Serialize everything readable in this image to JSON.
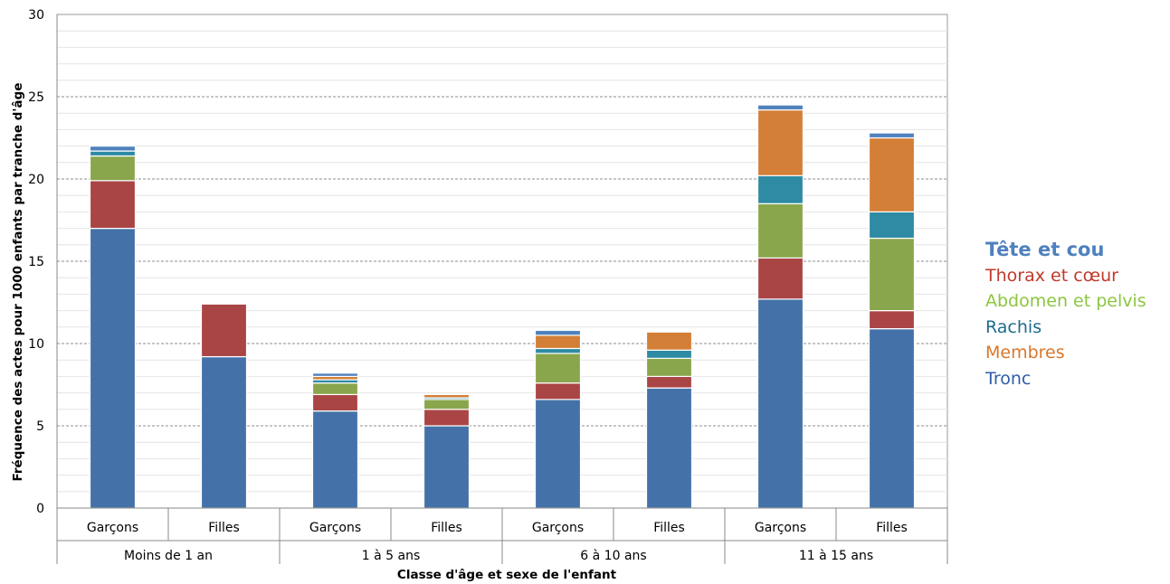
{
  "chart_data": {
    "type": "bar",
    "stacked": true,
    "ylabel": "Fréquence des actes pour 1000 enfants par tranche d'âge",
    "xlabel": "Classe d'âge et sexe de l'enfant",
    "ylim": [
      0,
      30
    ],
    "yticks": [
      "0",
      "5",
      "10",
      "15",
      "20",
      "25",
      "30"
    ],
    "grid": true,
    "legend_position": "right",
    "groups": [
      {
        "label": "Moins de 1 an",
        "categories": [
          "Garçons",
          "Filles"
        ]
      },
      {
        "label": "1 à 5 ans",
        "categories": [
          "Garçons",
          "Filles"
        ]
      },
      {
        "label": "6 à 10 ans",
        "categories": [
          "Garçons",
          "Filles"
        ]
      },
      {
        "label": "11 à 15 ans",
        "categories": [
          "Garçons",
          "Filles"
        ]
      }
    ],
    "categories": [
      "Garçons",
      "Filles",
      "Garçons",
      "Filles",
      "Garçons",
      "Filles",
      "Garçons",
      "Filles"
    ],
    "series": [
      {
        "name": "Tronc",
        "color": "#4472a8",
        "values": [
          17.0,
          9.2,
          5.9,
          5.0,
          6.6,
          7.3,
          12.7,
          10.9
        ]
      },
      {
        "name": "Thorax et cœur",
        "color": "#aa4545",
        "values": [
          2.9,
          3.2,
          1.0,
          1.0,
          1.0,
          0.7,
          2.5,
          1.1
        ]
      },
      {
        "name": "Abdomen et pelvis",
        "color": "#8aa64d",
        "values": [
          1.5,
          0,
          0.7,
          0.6,
          1.8,
          1.1,
          3.3,
          4.4
        ]
      },
      {
        "name": "Rachis",
        "color": "#2f8aa3",
        "values": [
          0.3,
          0,
          0.2,
          0.1,
          0.3,
          0.5,
          1.7,
          1.6
        ]
      },
      {
        "name": "Membres",
        "color": "#d37f38",
        "values": [
          0,
          0,
          0.2,
          0.2,
          0.8,
          1.1,
          4.0,
          4.5
        ]
      },
      {
        "name": "Tête et cou",
        "color": "#4f81bd",
        "values": [
          0.3,
          0,
          0.2,
          0.0,
          0.3,
          0,
          0.3,
          0.3
        ]
      }
    ]
  },
  "legend": {
    "items": [
      {
        "label": "Tête et cou",
        "color": "#4f81bd"
      },
      {
        "label": "Thorax et cœur",
        "color": "#c0392b"
      },
      {
        "label": "Abdomen et pelvis",
        "color": "#8cc63f"
      },
      {
        "label": "Rachis",
        "color": "#1f6b8e"
      },
      {
        "label": "Membres",
        "color": "#d9772b"
      },
      {
        "label": "Tronc",
        "color": "#2f5ea8"
      }
    ]
  }
}
